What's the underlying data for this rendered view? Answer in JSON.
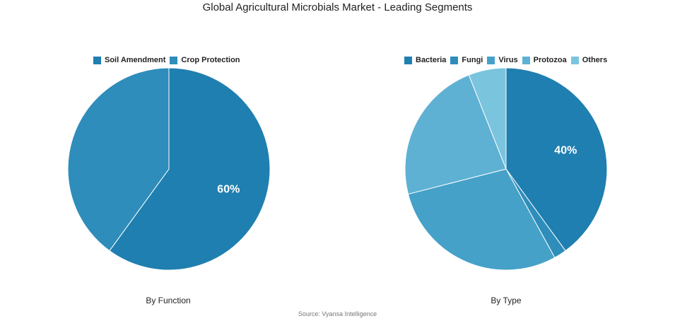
{
  "title": "Global Agricultural Microbials Market - Leading Segments",
  "source": "Source: Vyansa Intelligence",
  "chart_data": [
    {
      "type": "pie",
      "subtitle": "By Function",
      "legend_position": "top",
      "slices": [
        {
          "label": "Soil Amendment",
          "value": 60,
          "color": "#1f7fb0",
          "data_label": "60%"
        },
        {
          "label": "Crop Protection",
          "value": 40,
          "color": "#2e8dba",
          "data_label": ""
        }
      ]
    },
    {
      "type": "pie",
      "subtitle": "By Type",
      "legend_position": "top",
      "slices": [
        {
          "label": "Bacteria",
          "value": 40,
          "color": "#1f7fb0",
          "data_label": "40%"
        },
        {
          "label": "Fungi",
          "value": 2,
          "color": "#2e8dba",
          "data_label": ""
        },
        {
          "label": "Virus",
          "value": 29,
          "color": "#45a1c8",
          "data_label": ""
        },
        {
          "label": "Protozoa",
          "value": 23,
          "color": "#5fb1d3",
          "data_label": ""
        },
        {
          "label": "Others",
          "value": 6,
          "color": "#7bc4de",
          "data_label": ""
        }
      ]
    }
  ]
}
